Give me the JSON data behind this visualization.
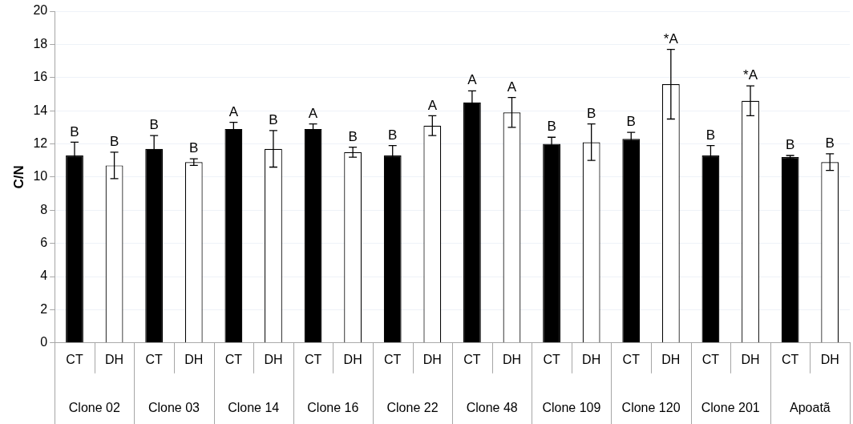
{
  "chart_data": {
    "type": "bar",
    "ylabel": "C/N",
    "categories": [
      "CT",
      "DH",
      "CT",
      "DH",
      "CT",
      "DH",
      "CT",
      "DH",
      "CT",
      "DH",
      "CT",
      "DH",
      "CT",
      "DH",
      "CT",
      "DH",
      "CT",
      "DH",
      "CT",
      "DH"
    ],
    "values": [
      11.3,
      10.7,
      11.7,
      10.9,
      12.9,
      11.7,
      12.9,
      11.5,
      11.3,
      13.1,
      14.5,
      13.9,
      12.0,
      12.1,
      12.3,
      15.6,
      11.3,
      14.6,
      11.2,
      10.9
    ],
    "errors": [
      0.8,
      0.8,
      0.8,
      0.2,
      0.4,
      1.1,
      0.3,
      0.3,
      0.6,
      0.6,
      0.7,
      0.9,
      0.4,
      1.1,
      0.4,
      2.1,
      0.6,
      0.9,
      0.1,
      0.5
    ],
    "colors": [
      "#000000",
      "#ffffff",
      "#000000",
      "#ffffff",
      "#000000",
      "#ffffff",
      "#000000",
      "#ffffff",
      "#000000",
      "#ffffff",
      "#000000",
      "#ffffff",
      "#000000",
      "#ffffff",
      "#000000",
      "#ffffff",
      "#000000",
      "#ffffff",
      "#000000",
      "#ffffff"
    ],
    "value_labels": [
      "B",
      "B",
      "B",
      "B",
      "A",
      "B",
      "A",
      "B",
      "B",
      "A",
      "A",
      "A",
      "B",
      "B",
      "B",
      "*A",
      "B",
      "*A",
      "B",
      "B"
    ],
    "annotations": [
      "Clone 02",
      "Clone 03",
      "Clone 14",
      "Clone 16",
      "Clone 22",
      "Clone 48",
      "Clone 109",
      "Clone 120",
      "Clone 201",
      "Apoatã"
    ],
    "ylim": [
      0,
      20
    ],
    "yticks": [
      0,
      2,
      4,
      6,
      8,
      10,
      12,
      14,
      16,
      18,
      20
    ],
    "grid": "y",
    "legend": false
  }
}
